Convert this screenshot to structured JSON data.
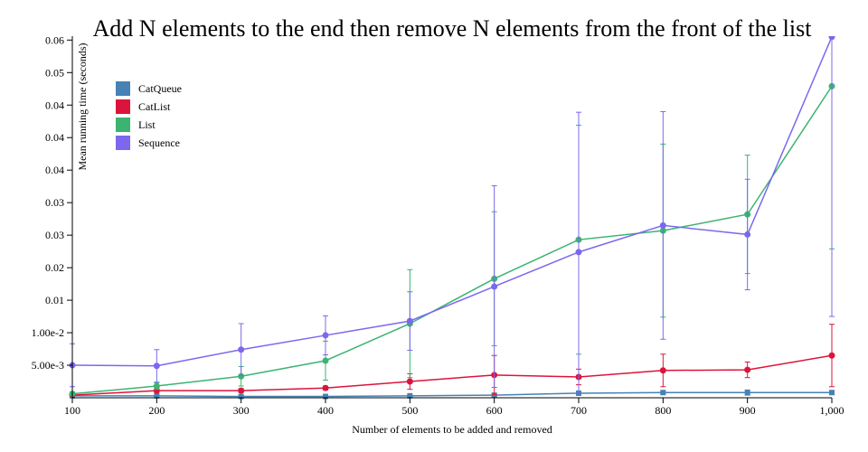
{
  "chart_data": {
    "type": "line",
    "title": "Add N elements to the end then remove N elements from the front of the list",
    "x_label": "Number of elements to be added and removed",
    "y_label": "Mean running time (seconds)",
    "x": [
      100,
      200,
      300,
      400,
      500,
      600,
      700,
      800,
      900,
      1000
    ],
    "xlim": [
      100,
      1000
    ],
    "xticks": [
      100,
      200,
      300,
      400,
      500,
      600,
      700,
      800,
      900,
      {
        "value": 1000,
        "label": "1,000"
      }
    ],
    "ylim": [
      0,
      0.0556
    ],
    "yticks": [
      {
        "value": 0.005,
        "label": "5.00e-3"
      },
      {
        "value": 0.01,
        "label": "1.00e-2"
      },
      {
        "value": 0.015,
        "label": "0.01"
      },
      0.02,
      {
        "value": 0.025,
        "label": "0.03"
      },
      0.03,
      {
        "value": 0.035,
        "label": "0.04"
      },
      0.04,
      {
        "value": 0.045,
        "label": "0.04"
      },
      0.05,
      {
        "value": 0.055,
        "label": "0.06"
      }
    ],
    "legend": "upper left",
    "series": [
      {
        "name": "CatQueue",
        "color": "#4682b4",
        "marker": "square",
        "values": [
          0.0003,
          0.0003,
          0.0002,
          0.0002,
          0.0003,
          0.0004,
          0.0007,
          0.0008,
          0.0008,
          0.0008
        ],
        "errors": [
          0.0001,
          0.0001,
          0.0001,
          0.0001,
          0.0001,
          0.0001,
          0.0002,
          0.0002,
          0.0004,
          0.0002
        ]
      },
      {
        "name": "CatList",
        "color": "#dc143c",
        "marker": "circle",
        "values": [
          0.0004,
          0.0011,
          0.0011,
          0.0015,
          0.0025,
          0.0035,
          0.0032,
          0.0042,
          0.0043,
          0.0065
        ],
        "errors": [
          0.0002,
          0.0003,
          0.0003,
          0.0003,
          0.0012,
          0.003,
          0.0012,
          0.0025,
          0.0012,
          0.0048
        ]
      },
      {
        "name": "List",
        "color": "#3cb371",
        "marker": "circle",
        "values": [
          0.0006,
          0.0018,
          0.0033,
          0.0057,
          0.0114,
          0.0183,
          0.0243,
          0.0257,
          0.0282,
          0.0479
        ],
        "errors": [
          0.0003,
          0.0005,
          0.0015,
          0.003,
          0.0083,
          0.0103,
          0.0176,
          0.0133,
          0.0091,
          0.025
        ]
      },
      {
        "name": "Sequence",
        "color": "#7b68ee",
        "marker": "circle",
        "values": [
          0.005,
          0.0049,
          0.0074,
          0.0096,
          0.0118,
          0.0171,
          0.0224,
          0.0265,
          0.0251,
          0.0555
        ],
        "errors": [
          0.0033,
          0.0025,
          0.004,
          0.003,
          0.0045,
          0.0155,
          0.0215,
          0.0175,
          0.0085,
          0.043
        ]
      }
    ]
  }
}
